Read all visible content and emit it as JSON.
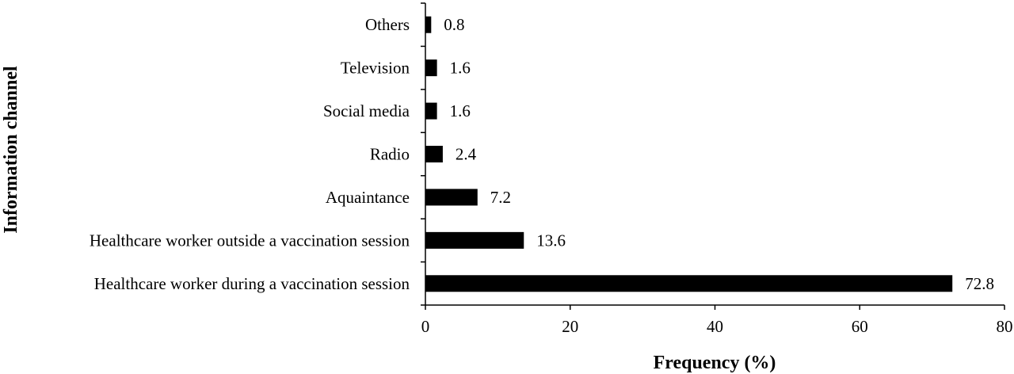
{
  "chart_data": {
    "type": "bar",
    "orientation": "horizontal",
    "categories": [
      "Healthcare worker during a vaccination session",
      "Healthcare worker outside a vaccination session",
      "Aquaintance",
      "Radio",
      "Social media",
      "Television",
      "Others"
    ],
    "values": [
      72.8,
      13.6,
      7.2,
      2.4,
      1.6,
      1.6,
      0.8
    ],
    "data_labels": [
      "72.8",
      "13.6",
      "7.2",
      "2.4",
      "1.6",
      "1.6",
      "0.8"
    ],
    "xlabel": "Frequency (%)",
    "ylabel": "Information channel",
    "xlim": [
      0,
      80
    ],
    "xticks": [
      0,
      20,
      40,
      60,
      80
    ],
    "grid": false,
    "bar_color": "#000000"
  }
}
